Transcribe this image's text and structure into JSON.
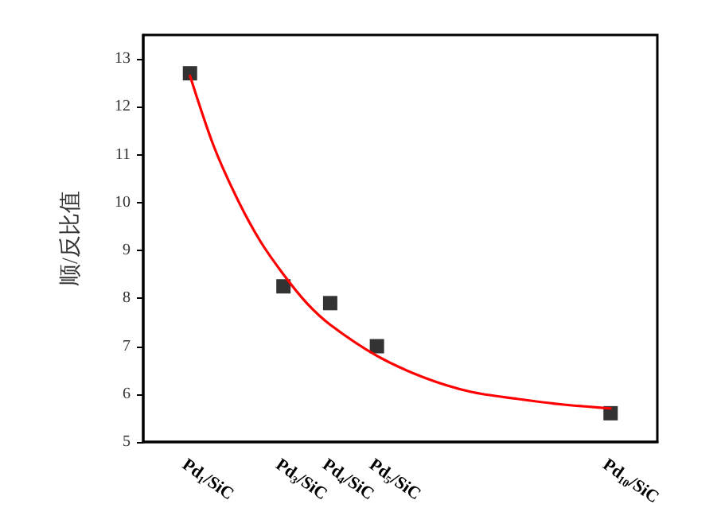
{
  "chart_data": {
    "type": "scatter",
    "ylabel": "顺/反比值",
    "xlim": [
      0,
      11
    ],
    "xticks": [
      {
        "value": 1,
        "label": "Pd$_{1}$/SiC"
      },
      {
        "value": 3,
        "label": "Pd$_{3}$/SiC"
      },
      {
        "value": 4,
        "label": "Pd$_{4}$/SiC"
      },
      {
        "value": 5,
        "label": "Pd$_{5}$/SiC"
      },
      {
        "value": 10,
        "label": "Pd$_{10}$/SiC"
      }
    ],
    "ylim": [
      5,
      13.5
    ],
    "yticks": [
      5,
      6,
      7,
      8,
      9,
      10,
      11,
      12,
      13
    ],
    "grid": false,
    "marker": "square",
    "series": [
      {
        "color": "#000000",
        "x": [
          1,
          3,
          4,
          5,
          10
        ],
        "values": [
          12.7,
          8.25,
          7.9,
          7.0,
          5.6
        ]
      },
      {
        "type": "line",
        "color": "#ff0000",
        "marker": "none",
        "line_style": "solid",
        "x": [
          1,
          1.5,
          2,
          2.5,
          3,
          3.5,
          4,
          5,
          6,
          7,
          8,
          9,
          10
        ],
        "values": [
          12.65,
          11.2,
          10.1,
          9.2,
          8.5,
          7.9,
          7.45,
          6.8,
          6.35,
          6.05,
          5.9,
          5.78,
          5.7
        ]
      }
    ]
  }
}
